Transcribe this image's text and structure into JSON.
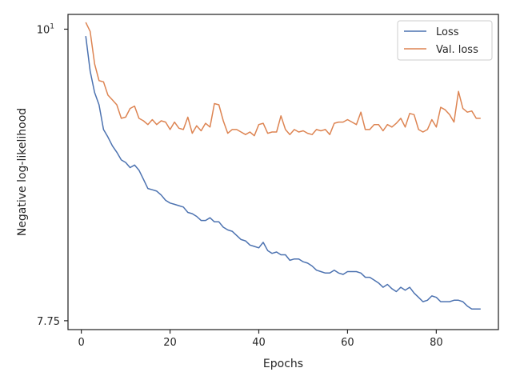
{
  "chart_data": {
    "type": "line",
    "title": "",
    "xlabel": "Epochs",
    "ylabel": "Negative log-likelihood",
    "xlim": [
      -3,
      94
    ],
    "ylim": [
      7.69,
      10.13
    ],
    "y_scale": "log",
    "grid": false,
    "legend_position": "top-right",
    "x_ticks": [
      0,
      20,
      40,
      60,
      80
    ],
    "x_tick_labels": [
      "0",
      "20",
      "40",
      "60",
      "80"
    ],
    "y_ticks": [
      {
        "value": 7.75,
        "label": "7.75"
      },
      {
        "value": 10,
        "label": "10",
        "exponent": "1"
      }
    ],
    "x": [
      1,
      2,
      3,
      4,
      5,
      6,
      7,
      8,
      9,
      10,
      11,
      12,
      13,
      14,
      15,
      16,
      17,
      18,
      19,
      20,
      21,
      22,
      23,
      24,
      25,
      26,
      27,
      28,
      29,
      30,
      31,
      32,
      33,
      34,
      35,
      36,
      37,
      38,
      39,
      40,
      41,
      42,
      43,
      44,
      45,
      46,
      47,
      48,
      49,
      50,
      51,
      52,
      53,
      54,
      55,
      56,
      57,
      58,
      59,
      60,
      61,
      62,
      63,
      64,
      65,
      66,
      67,
      68,
      69,
      70,
      71,
      72,
      73,
      74,
      75,
      76,
      77,
      78,
      79,
      80,
      81,
      82,
      83,
      84,
      85,
      86,
      87,
      88,
      89,
      90
    ],
    "series": [
      {
        "name": "Loss",
        "color": "#4c72b0",
        "values": [
          9.94,
          9.64,
          9.46,
          9.36,
          9.16,
          9.1,
          9.03,
          8.98,
          8.92,
          8.9,
          8.86,
          8.88,
          8.84,
          8.77,
          8.7,
          8.69,
          8.68,
          8.65,
          8.61,
          8.59,
          8.58,
          8.57,
          8.56,
          8.52,
          8.51,
          8.49,
          8.46,
          8.46,
          8.48,
          8.45,
          8.45,
          8.41,
          8.39,
          8.38,
          8.35,
          8.32,
          8.31,
          8.28,
          8.27,
          8.26,
          8.3,
          8.24,
          8.22,
          8.23,
          8.21,
          8.21,
          8.17,
          8.18,
          8.18,
          8.16,
          8.15,
          8.13,
          8.1,
          8.09,
          8.08,
          8.08,
          8.1,
          8.08,
          8.07,
          8.09,
          8.09,
          8.09,
          8.08,
          8.05,
          8.05,
          8.03,
          8.01,
          7.98,
          8.0,
          7.97,
          7.95,
          7.98,
          7.96,
          7.98,
          7.94,
          7.91,
          7.88,
          7.89,
          7.92,
          7.91,
          7.88,
          7.88,
          7.88,
          7.89,
          7.89,
          7.88,
          7.85,
          7.83,
          7.83,
          7.83
        ]
      },
      {
        "name": "Val. loss",
        "color": "#dd8452",
        "values": [
          10.06,
          9.98,
          9.7,
          9.56,
          9.55,
          9.44,
          9.4,
          9.36,
          9.25,
          9.26,
          9.33,
          9.35,
          9.25,
          9.23,
          9.2,
          9.24,
          9.2,
          9.23,
          9.22,
          9.16,
          9.22,
          9.17,
          9.16,
          9.26,
          9.13,
          9.19,
          9.15,
          9.21,
          9.18,
          9.37,
          9.36,
          9.23,
          9.13,
          9.16,
          9.16,
          9.14,
          9.12,
          9.14,
          9.11,
          9.2,
          9.21,
          9.13,
          9.14,
          9.14,
          9.27,
          9.16,
          9.12,
          9.16,
          9.14,
          9.15,
          9.13,
          9.12,
          9.16,
          9.15,
          9.16,
          9.12,
          9.21,
          9.22,
          9.22,
          9.24,
          9.22,
          9.2,
          9.3,
          9.16,
          9.16,
          9.2,
          9.2,
          9.15,
          9.2,
          9.18,
          9.21,
          9.25,
          9.18,
          9.29,
          9.28,
          9.16,
          9.14,
          9.16,
          9.24,
          9.18,
          9.34,
          9.32,
          9.28,
          9.22,
          9.47,
          9.33,
          9.3,
          9.31,
          9.25,
          9.25
        ]
      }
    ]
  }
}
